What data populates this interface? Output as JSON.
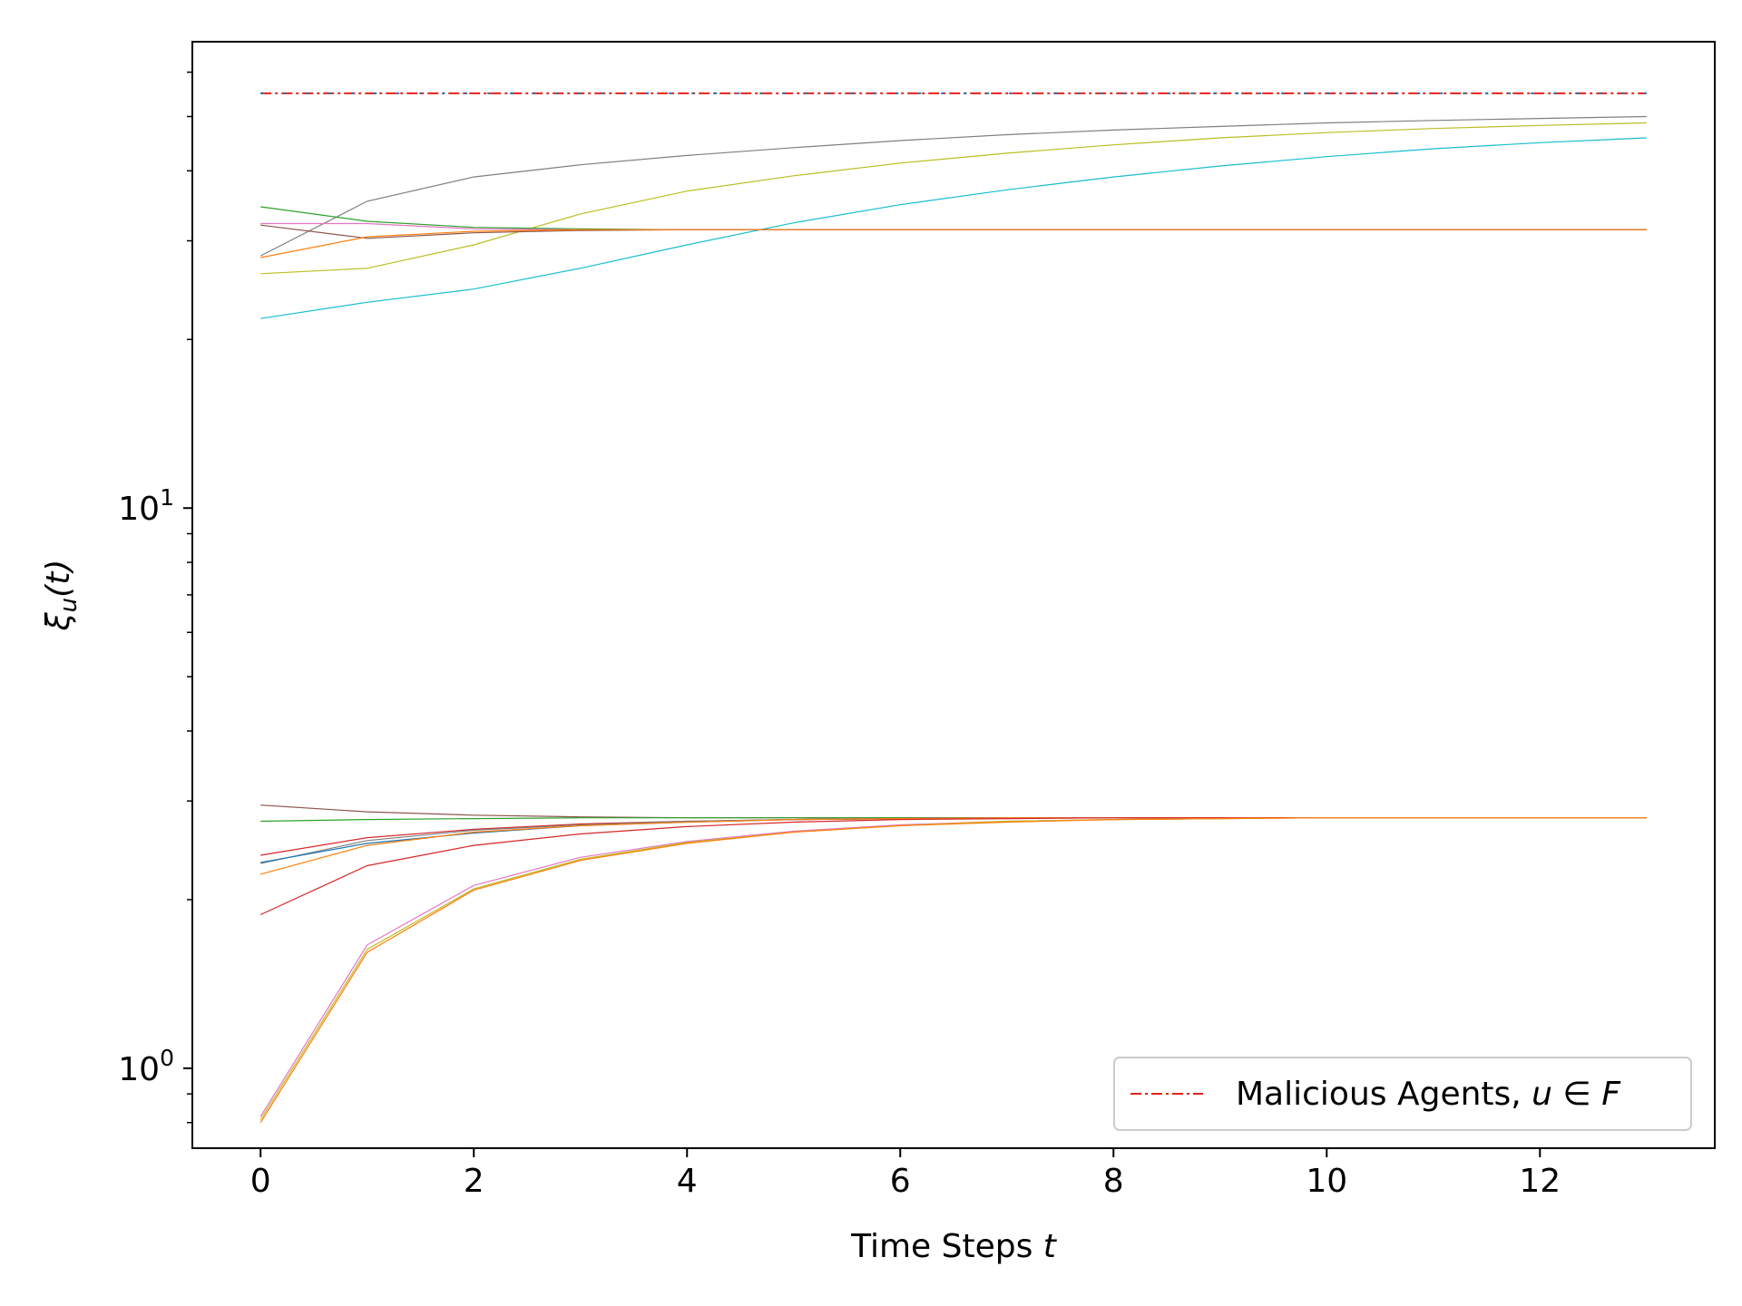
{
  "chart_data": {
    "type": "line",
    "xlabel": {
      "text": "Time Steps ",
      "var": "t"
    },
    "ylabel": {
      "sym": "ξ",
      "sub": "u",
      "arg": "(t)"
    },
    "xlim": [
      -0.64,
      13.64
    ],
    "ylim": [
      0.72,
      68
    ],
    "yscale": "log",
    "grid": false,
    "x_ticks": [
      0,
      2,
      4,
      6,
      8,
      10,
      12
    ],
    "y_ticks": [
      {
        "value": 1,
        "base": "10",
        "exp": "0"
      },
      {
        "value": 10,
        "base": "10",
        "exp": "1"
      }
    ],
    "legend": {
      "placement": "lower-right",
      "entries": [
        {
          "label": "Malicious Agents, ",
          "math": "u ∈ F",
          "color": "#e8221b",
          "style": "dashdot"
        }
      ]
    },
    "x": [
      0,
      1,
      2,
      3,
      4,
      5,
      6,
      7,
      8,
      9,
      10,
      11,
      12,
      13
    ],
    "malicious_series": [
      {
        "color": "#e8221b",
        "values": [
          55.0,
          55.0,
          55.0,
          55.0,
          55.0,
          55.0,
          55.0,
          55.0,
          55.0,
          55.0,
          55.0,
          55.0,
          55.0,
          55.0
        ]
      },
      {
        "color": "#1f77b4",
        "values": [
          55.0,
          55.0,
          55.0,
          55.0,
          55.0,
          55.0,
          55.0,
          55.0,
          55.0,
          55.0,
          55.0,
          55.0,
          55.0,
          55.0
        ]
      }
    ],
    "series": [
      {
        "color": "#7f7f7f",
        "values": [
          28.2,
          35.3,
          39.0,
          41.0,
          42.6,
          44.0,
          45.3,
          46.4,
          47.3,
          48.0,
          48.7,
          49.2,
          49.6,
          50.0
        ]
      },
      {
        "color": "#bcbd22",
        "values": [
          26.2,
          26.8,
          29.5,
          33.5,
          36.8,
          39.2,
          41.3,
          43.0,
          44.5,
          45.8,
          46.8,
          47.6,
          48.2,
          48.7
        ]
      },
      {
        "color": "#17becf",
        "values": [
          21.8,
          23.3,
          24.6,
          26.8,
          29.5,
          32.3,
          34.8,
          37.0,
          39.0,
          40.8,
          42.4,
          43.8,
          44.9,
          45.8
        ]
      },
      {
        "color": "#2ca02c",
        "values": [
          34.5,
          32.5,
          31.7,
          31.5,
          31.4,
          31.4,
          31.4,
          31.4,
          31.4,
          31.4,
          31.4,
          31.4,
          31.4,
          31.4
        ]
      },
      {
        "color": "#e377c2",
        "values": [
          32.2,
          32.2,
          31.5,
          31.4,
          31.4,
          31.4,
          31.4,
          31.4,
          31.4,
          31.4,
          31.4,
          31.4,
          31.4,
          31.4
        ]
      },
      {
        "color": "#8c564b",
        "values": [
          32.0,
          30.3,
          31.0,
          31.3,
          31.4,
          31.4,
          31.4,
          31.4,
          31.4,
          31.4,
          31.4,
          31.4,
          31.4,
          31.4
        ]
      },
      {
        "color": "#ff7f0e",
        "values": [
          28.0,
          30.5,
          31.2,
          31.4,
          31.4,
          31.4,
          31.4,
          31.4,
          31.4,
          31.4,
          31.4,
          31.4,
          31.4,
          31.4
        ]
      },
      {
        "color": "#8c564b",
        "values": [
          2.95,
          2.87,
          2.83,
          2.81,
          2.8,
          2.8,
          2.8,
          2.8,
          2.8,
          2.8,
          2.8,
          2.8,
          2.8,
          2.8
        ]
      },
      {
        "color": "#2ca02c",
        "values": [
          2.76,
          2.78,
          2.79,
          2.8,
          2.8,
          2.8,
          2.8,
          2.8,
          2.8,
          2.8,
          2.8,
          2.8,
          2.8,
          2.8
        ]
      },
      {
        "color": "#d62728",
        "values": [
          2.4,
          2.58,
          2.67,
          2.73,
          2.76,
          2.78,
          2.79,
          2.8,
          2.8,
          2.8,
          2.8,
          2.8,
          2.8,
          2.8
        ]
      },
      {
        "color": "#7f7f7f",
        "values": [
          2.32,
          2.55,
          2.66,
          2.72,
          2.76,
          2.78,
          2.79,
          2.8,
          2.8,
          2.8,
          2.8,
          2.8,
          2.8,
          2.8
        ]
      },
      {
        "color": "#1f77b4",
        "values": [
          2.33,
          2.52,
          2.63,
          2.71,
          2.75,
          2.78,
          2.79,
          2.8,
          2.8,
          2.8,
          2.8,
          2.8,
          2.8,
          2.8
        ]
      },
      {
        "color": "#ff7f0e",
        "values": [
          2.22,
          2.5,
          2.64,
          2.71,
          2.75,
          2.78,
          2.79,
          2.8,
          2.8,
          2.8,
          2.8,
          2.8,
          2.8,
          2.8
        ]
      },
      {
        "color": "#d62728",
        "values": [
          1.88,
          2.3,
          2.5,
          2.62,
          2.7,
          2.75,
          2.78,
          2.79,
          2.8,
          2.8,
          2.8,
          2.8,
          2.8,
          2.8
        ]
      },
      {
        "color": "#e377c2",
        "values": [
          0.82,
          1.66,
          2.12,
          2.38,
          2.54,
          2.65,
          2.72,
          2.76,
          2.78,
          2.79,
          2.8,
          2.8,
          2.8,
          2.8
        ]
      },
      {
        "color": "#bcbd22",
        "values": [
          0.81,
          1.63,
          2.09,
          2.36,
          2.53,
          2.64,
          2.71,
          2.76,
          2.78,
          2.79,
          2.8,
          2.8,
          2.8,
          2.8
        ]
      },
      {
        "color": "#ff7f0e",
        "values": [
          0.8,
          1.61,
          2.08,
          2.35,
          2.52,
          2.64,
          2.71,
          2.75,
          2.78,
          2.79,
          2.8,
          2.8,
          2.8,
          2.8
        ]
      }
    ]
  }
}
